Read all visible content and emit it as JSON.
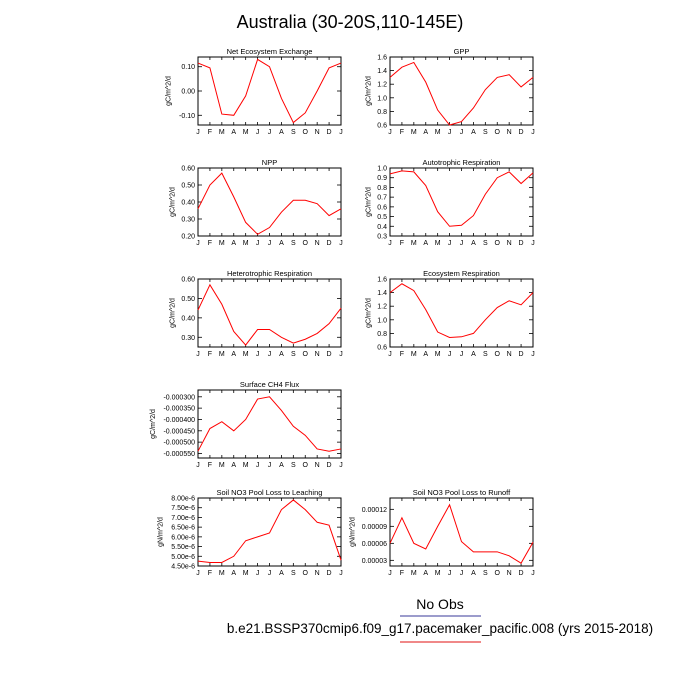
{
  "figure": {
    "title": "Australia (30-20S,110-145E)",
    "legend_label": "No Obs",
    "legend_color": "#3a3a9a",
    "case_label": "b.e21.BSSP370cmip6.f09_g17.pacemaker_pacific.008 (yrs 2015-2018)",
    "case_color": "#e01010"
  },
  "chart_data": [
    {
      "type": "line",
      "title": "Net Ecosystem Exchange",
      "ylabel": "gC/m^2/d",
      "x": [
        "J",
        "F",
        "M",
        "A",
        "M",
        "J",
        "J",
        "A",
        "S",
        "O",
        "N",
        "D",
        "J"
      ],
      "ylim": [
        -0.14,
        0.14
      ],
      "yticks": [
        -0.1,
        0.0,
        0.1
      ],
      "ytick_labels": [
        "-0.10",
        "0.00",
        "0.10"
      ],
      "series": [
        {
          "color": "#ff0000",
          "values": [
            0.115,
            0.095,
            -0.095,
            -0.1,
            -0.02,
            0.13,
            0.1,
            -0.03,
            -0.13,
            -0.09,
            0.0,
            0.095,
            0.115
          ]
        }
      ]
    },
    {
      "type": "line",
      "title": "GPP",
      "ylabel": "gC/m^2/d",
      "x": [
        "J",
        "F",
        "M",
        "A",
        "M",
        "J",
        "J",
        "A",
        "S",
        "O",
        "N",
        "D",
        "J"
      ],
      "ylim": [
        0.6,
        1.6
      ],
      "yticks": [
        0.6,
        0.8,
        1.0,
        1.2,
        1.4,
        1.6
      ],
      "ytick_labels": [
        "0.6",
        "0.8",
        "1.0",
        "1.2",
        "1.4",
        "1.6"
      ],
      "series": [
        {
          "color": "#ff0000",
          "values": [
            1.3,
            1.45,
            1.52,
            1.23,
            0.82,
            0.6,
            0.65,
            0.85,
            1.12,
            1.3,
            1.34,
            1.16,
            1.3
          ]
        }
      ]
    },
    {
      "type": "line",
      "title": "NPP",
      "ylabel": "gC/m^2/d",
      "x": [
        "J",
        "F",
        "M",
        "A",
        "M",
        "J",
        "J",
        "A",
        "S",
        "O",
        "N",
        "D",
        "J"
      ],
      "ylim": [
        0.2,
        0.6
      ],
      "yticks": [
        0.2,
        0.3,
        0.4,
        0.5,
        0.6
      ],
      "ytick_labels": [
        "0.20",
        "0.30",
        "0.40",
        "0.50",
        "0.60"
      ],
      "series": [
        {
          "color": "#ff0000",
          "values": [
            0.36,
            0.5,
            0.57,
            0.43,
            0.28,
            0.21,
            0.25,
            0.34,
            0.41,
            0.41,
            0.39,
            0.32,
            0.36
          ]
        }
      ]
    },
    {
      "type": "line",
      "title": "Autotrophic Respiration",
      "ylabel": "gC/m^2/d",
      "x": [
        "J",
        "F",
        "M",
        "A",
        "M",
        "J",
        "J",
        "A",
        "S",
        "O",
        "N",
        "D",
        "J"
      ],
      "ylim": [
        0.3,
        1.0
      ],
      "yticks": [
        0.3,
        0.4,
        0.5,
        0.6,
        0.7,
        0.8,
        0.9,
        1.0
      ],
      "ytick_labels": [
        "0.3",
        "0.4",
        "0.5",
        "0.6",
        "0.7",
        "0.8",
        "0.9",
        "1.0"
      ],
      "series": [
        {
          "color": "#ff0000",
          "values": [
            0.94,
            0.97,
            0.96,
            0.82,
            0.55,
            0.4,
            0.41,
            0.51,
            0.73,
            0.9,
            0.96,
            0.84,
            0.95
          ]
        }
      ]
    },
    {
      "type": "line",
      "title": "Heterotrophic Respiration",
      "ylabel": "gC/m^2/d",
      "x": [
        "J",
        "F",
        "M",
        "A",
        "M",
        "J",
        "J",
        "A",
        "S",
        "O",
        "N",
        "D",
        "J"
      ],
      "ylim": [
        0.25,
        0.6
      ],
      "yticks": [
        0.3,
        0.4,
        0.5,
        0.6
      ],
      "ytick_labels": [
        "0.30",
        "0.40",
        "0.50",
        "0.60"
      ],
      "series": [
        {
          "color": "#ff0000",
          "values": [
            0.44,
            0.57,
            0.47,
            0.33,
            0.26,
            0.34,
            0.34,
            0.3,
            0.27,
            0.29,
            0.32,
            0.37,
            0.45
          ]
        }
      ]
    },
    {
      "type": "line",
      "title": "Ecosystem Respiration",
      "ylabel": "gC/m^2/d",
      "x": [
        "J",
        "F",
        "M",
        "A",
        "M",
        "J",
        "J",
        "A",
        "S",
        "O",
        "N",
        "D",
        "J"
      ],
      "ylim": [
        0.6,
        1.6
      ],
      "yticks": [
        0.6,
        0.8,
        1.0,
        1.2,
        1.4,
        1.6
      ],
      "ytick_labels": [
        "0.6",
        "0.8",
        "1.0",
        "1.2",
        "1.4",
        "1.6"
      ],
      "series": [
        {
          "color": "#ff0000",
          "values": [
            1.4,
            1.53,
            1.43,
            1.15,
            0.82,
            0.74,
            0.75,
            0.8,
            1.0,
            1.18,
            1.28,
            1.22,
            1.4
          ]
        }
      ]
    },
    {
      "type": "line",
      "title": "Surface CH4 Flux",
      "ylabel": "gC/m^2/d",
      "x": [
        "J",
        "F",
        "M",
        "A",
        "M",
        "J",
        "J",
        "A",
        "S",
        "O",
        "N",
        "D",
        "J"
      ],
      "ylim": [
        -0.00057,
        -0.00027
      ],
      "yticks": [
        -0.00055,
        -0.0005,
        -0.00045,
        -0.0004,
        -0.00035,
        -0.0003
      ],
      "ytick_labels": [
        "-0.000550",
        "-0.000500",
        "-0.000450",
        "-0.000400",
        "-0.000350",
        "-0.000300"
      ],
      "series": [
        {
          "color": "#ff0000",
          "values": [
            -0.00054,
            -0.00044,
            -0.00041,
            -0.00045,
            -0.0004,
            -0.00031,
            -0.0003,
            -0.00036,
            -0.00043,
            -0.00047,
            -0.00053,
            -0.00054,
            -0.00053
          ]
        }
      ]
    },
    {
      "type": "line",
      "title": "Soil NO3 Pool Loss to Leaching",
      "ylabel": "gN/m^2/d",
      "x": [
        "J",
        "F",
        "M",
        "A",
        "M",
        "J",
        "J",
        "A",
        "S",
        "O",
        "N",
        "D",
        "J"
      ],
      "ylim": [
        4.5e-06,
        8e-06
      ],
      "yticks": [
        4.5e-06,
        5e-06,
        5.5e-06,
        6e-06,
        6.5e-06,
        7e-06,
        7.5e-06,
        8e-06
      ],
      "ytick_labels": [
        "4.50e-6",
        "5.00e-6",
        "5.50e-6",
        "6.00e-6",
        "6.50e-6",
        "7.00e-6",
        "7.50e-6",
        "8.00e-6"
      ],
      "series": [
        {
          "color": "#ff0000",
          "values": [
            4.75e-06,
            4.68e-06,
            4.68e-06,
            5e-06,
            5.8e-06,
            6e-06,
            6.2e-06,
            7.4e-06,
            7.9e-06,
            7.4e-06,
            6.75e-06,
            6.6e-06,
            4.8e-06
          ]
        }
      ]
    },
    {
      "type": "line",
      "title": "Soil NO3 Pool Loss to Runoff",
      "ylabel": "gN/m^2/d",
      "x": [
        "J",
        "F",
        "M",
        "A",
        "M",
        "J",
        "J",
        "A",
        "S",
        "O",
        "N",
        "D",
        "J"
      ],
      "ylim": [
        2e-05,
        0.00014
      ],
      "yticks": [
        3e-05,
        6e-05,
        9e-05,
        0.00012
      ],
      "ytick_labels": [
        "0.00003",
        "0.00006",
        "0.00009",
        "0.00012"
      ],
      "series": [
        {
          "color": "#ff0000",
          "values": [
            6e-05,
            0.000105,
            6e-05,
            5e-05,
            9e-05,
            0.000128,
            6.3e-05,
            4.5e-05,
            4.5e-05,
            4.5e-05,
            3.8e-05,
            2.5e-05,
            6.2e-05
          ]
        }
      ]
    }
  ]
}
